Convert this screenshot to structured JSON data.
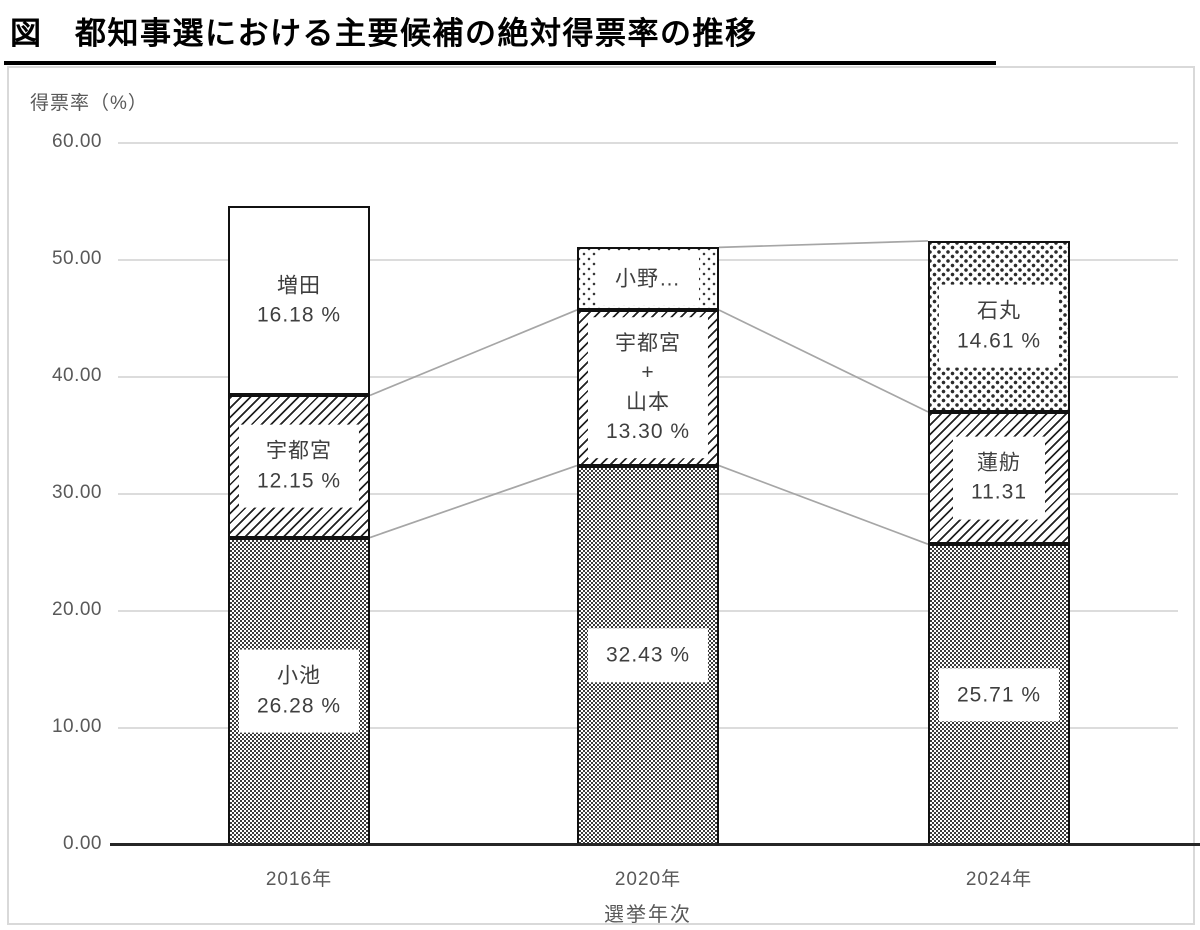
{
  "title": "図　都知事選における主要候補の絶対得票率の推移",
  "chart_data": {
    "type": "bar",
    "stacked": true,
    "title": "図　都知事選における主要候補の絶対得票率の推移",
    "ylabel": "得票率（%）",
    "xlabel": "選挙年次",
    "ylim": [
      0,
      60
    ],
    "yticks": [
      0,
      10,
      20,
      30,
      40,
      50,
      60
    ],
    "ytick_labels": [
      "0.00",
      "10.00",
      "20.00",
      "30.00",
      "40.00",
      "50.00",
      "60.00"
    ],
    "grid": true,
    "legend": "none",
    "categories": [
      "2016年",
      "2020年",
      "2024年"
    ],
    "bars": [
      {
        "category": "2016年",
        "total": 54.61,
        "segments": [
          {
            "name": "小池",
            "value": 26.28,
            "label_lines": [
              "小池",
              "26.28 %"
            ],
            "pattern": "checker",
            "label_box": true
          },
          {
            "name": "宇都宮",
            "value": 12.15,
            "label_lines": [
              "宇都宮",
              "12.15 %"
            ],
            "pattern": "diagonal",
            "label_box": true
          },
          {
            "name": "増田",
            "value": 16.18,
            "label_lines": [
              "増田",
              "16.18 %"
            ],
            "pattern": "plain",
            "label_box": false
          }
        ]
      },
      {
        "category": "2020年",
        "total": 51.08,
        "segments": [
          {
            "name": "小池",
            "value": 32.43,
            "label_lines": [
              "32.43 %"
            ],
            "pattern": "checker",
            "label_box": true
          },
          {
            "name": "宇都宮＋山本",
            "value": 13.3,
            "label_lines": [
              "宇都宮",
              "+",
              "山本",
              "13.30 %"
            ],
            "pattern": "diagonal",
            "label_box": true
          },
          {
            "name": "小野",
            "value": 5.35,
            "label_lines": [
              "小野…"
            ],
            "pattern": "dots-sparse",
            "label_box": true
          }
        ]
      },
      {
        "category": "2024年",
        "total": 51.63,
        "segments": [
          {
            "name": "小池",
            "value": 25.71,
            "label_lines": [
              "25.71 %"
            ],
            "pattern": "checker",
            "label_box": true
          },
          {
            "name": "蓮舫",
            "value": 11.31,
            "label_lines": [
              "蓮舫",
              "11.31"
            ],
            "pattern": "diagonal",
            "label_box": true
          },
          {
            "name": "石丸",
            "value": 14.61,
            "label_lines": [
              "石丸",
              "14.61 %"
            ],
            "pattern": "dots",
            "label_box": true
          }
        ]
      }
    ],
    "series_lines": [
      {
        "from_bar": 0,
        "to_bar": 1,
        "level": 1
      },
      {
        "from_bar": 0,
        "to_bar": 1,
        "level": 2
      },
      {
        "from_bar": 1,
        "to_bar": 2,
        "level": 1
      },
      {
        "from_bar": 1,
        "to_bar": 2,
        "level": 2
      },
      {
        "from_bar": 1,
        "to_bar": 2,
        "level": 3
      }
    ],
    "colors": {
      "background": "#ffffff",
      "bar_border": "#111111",
      "pattern_ink": "#2f2f2f",
      "grid": "#dcdcdc",
      "axis": "#262626",
      "tick_text": "#595959",
      "label_text": "#3f3f3f",
      "series_line": "#a6a6a6",
      "frame_border": "#d9d9d9",
      "title_text": "#000000"
    }
  }
}
